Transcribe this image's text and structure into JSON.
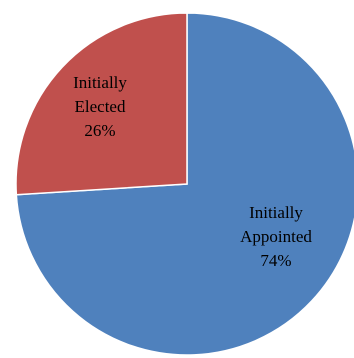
{
  "chart_data": {
    "type": "pie",
    "slices": [
      {
        "lines": [
          "Initially",
          "Appointed",
          "74%"
        ],
        "value": 74,
        "color": "#4F81BD"
      },
      {
        "lines": [
          "Initially",
          "Elected",
          "26%"
        ],
        "value": 26,
        "color": "#C0504D"
      }
    ]
  }
}
